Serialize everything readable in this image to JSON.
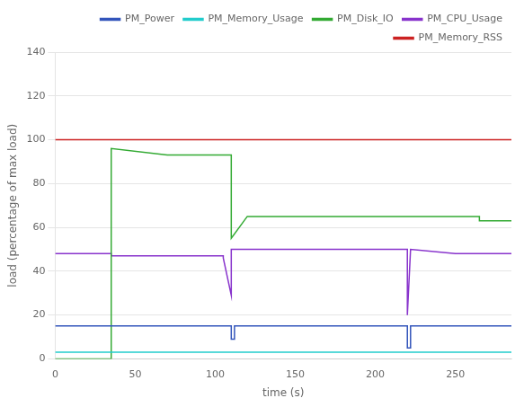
{
  "chart_data": {
    "type": "line",
    "xlabel": "time (s)",
    "ylabel": "load (percentage of max load)",
    "xlim": [
      0,
      285
    ],
    "ylim": [
      0,
      140
    ],
    "xticks": [
      0,
      50,
      100,
      150,
      200,
      250
    ],
    "yticks": [
      0,
      20,
      40,
      60,
      80,
      100,
      120,
      140
    ],
    "grid": "y",
    "legend": "upper right",
    "series": [
      {
        "name": "PM_Power",
        "color": "#3355bb",
        "x": [
          0,
          35,
          35,
          110,
          110,
          112,
          112,
          220,
          220,
          222,
          222,
          285
        ],
        "values": [
          15,
          15,
          15,
          15,
          9,
          9,
          15,
          15,
          5,
          5,
          15,
          15
        ]
      },
      {
        "name": "PM_Memory_Usage",
        "color": "#22cccc",
        "x": [
          0,
          285
        ],
        "values": [
          3,
          3
        ]
      },
      {
        "name": "PM_Disk_IO",
        "color": "#33aa33",
        "x": [
          0,
          35,
          35,
          70,
          70,
          110,
          110,
          120,
          120,
          220,
          220,
          222,
          222,
          265,
          265,
          285
        ],
        "values": [
          0,
          0,
          96,
          93,
          93,
          93,
          55,
          65,
          65,
          65,
          65,
          65,
          65,
          65,
          63,
          63
        ]
      },
      {
        "name": "PM_CPU_Usage",
        "color": "#8833cc",
        "x": [
          0,
          35,
          35,
          105,
          105,
          110,
          110,
          115,
          115,
          220,
          220,
          222,
          222,
          250,
          250,
          285
        ],
        "values": [
          48,
          48,
          47,
          47,
          46,
          29,
          50,
          50,
          50,
          50,
          20,
          50,
          50,
          48,
          48,
          48
        ]
      },
      {
        "name": "PM_Memory_RSS",
        "color": "#cc2222",
        "x": [
          0,
          285
        ],
        "values": [
          100,
          100
        ]
      }
    ]
  }
}
